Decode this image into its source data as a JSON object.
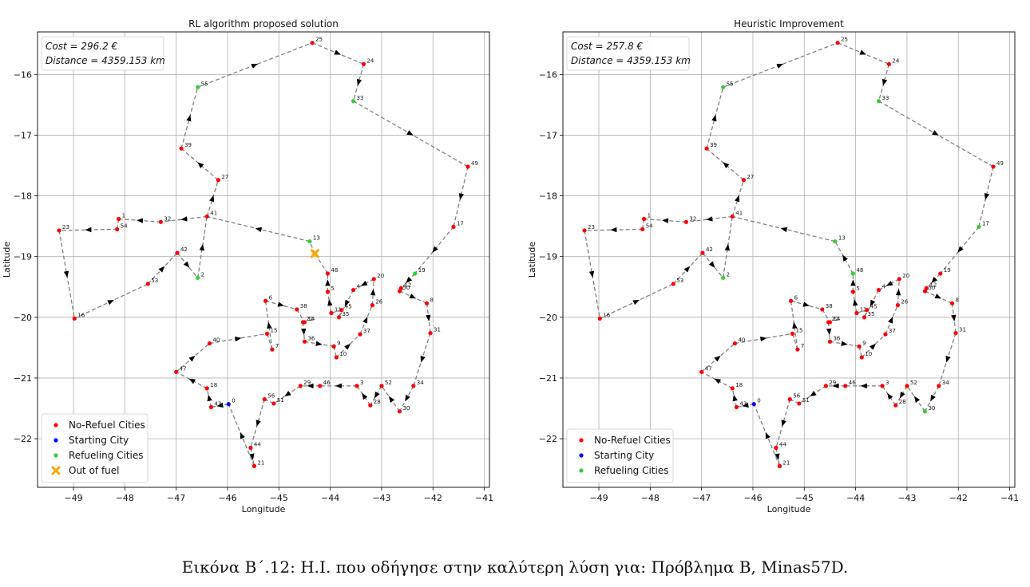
{
  "chart_data": [
    {
      "type": "scatter",
      "title": "RL algorithm proposed solution",
      "xlabel": "Longitude",
      "ylabel": "Latitude",
      "xlim": [
        -49.7,
        -40.9
      ],
      "ylim": [
        -22.8,
        -15.3
      ],
      "xticks": [
        -49,
        -48,
        -47,
        -46,
        -45,
        -44,
        -43,
        -42,
        -41
      ],
      "yticks": [
        -16,
        -17,
        -18,
        -19,
        -20,
        -21,
        -22
      ],
      "grid": true,
      "info_lines": [
        "Cost = 296.2 €",
        "Distance = 4359.153 km"
      ],
      "legend_position": "lower-left",
      "legend": [
        {
          "label": "No-Refuel Cities",
          "color": "#ff0000",
          "marker": "dot"
        },
        {
          "label": "Starting City",
          "color": "#0000ff",
          "marker": "dot"
        },
        {
          "label": "Refueling Cities",
          "color": "#33cc33",
          "marker": "dot"
        },
        {
          "label": "Out of fuel",
          "color": "#ffa500",
          "marker": "x"
        }
      ],
      "refuel_cities": [
        "55",
        "33",
        "13",
        "2",
        "19"
      ],
      "out_of_fuel": {
        "x": -44.3,
        "y": -18.95
      },
      "route": [
        "0",
        "43",
        "18",
        "47",
        "40",
        "15",
        "7",
        "6",
        "38",
        "14",
        "22",
        "36",
        "9",
        "10",
        "37",
        "26",
        "20",
        "4",
        "35",
        "45",
        "11",
        "5",
        "48",
        "13",
        "41",
        "27",
        "39",
        "55",
        "25",
        "24",
        "33",
        "49",
        "17",
        "19",
        "12",
        "50",
        "8",
        "31",
        "34",
        "30",
        "52",
        "28",
        "3",
        "46",
        "29",
        "51",
        "56",
        "44",
        "21",
        "0"
      ],
      "route_complete": false,
      "break_after": "48",
      "extra_path": [
        "41",
        "32",
        "1",
        "54",
        "23",
        "16",
        "53",
        "42",
        "2",
        "41"
      ]
    },
    {
      "type": "scatter",
      "title": "Heuristic Improvement",
      "xlabel": "Longitude",
      "ylabel": "Latitude",
      "xlim": [
        -49.7,
        -40.9
      ],
      "ylim": [
        -22.8,
        -15.3
      ],
      "xticks": [
        -49,
        -48,
        -47,
        -46,
        -45,
        -44,
        -43,
        -42,
        -41
      ],
      "yticks": [
        -16,
        -17,
        -18,
        -19,
        -20,
        -21,
        -22
      ],
      "grid": true,
      "info_lines": [
        "Cost = 257.8 €",
        "Distance = 4359.153 km"
      ],
      "legend_position": "lower-left",
      "legend": [
        {
          "label": "No-Refuel Cities",
          "color": "#ff0000",
          "marker": "dot"
        },
        {
          "label": "Starting City",
          "color": "#0000ff",
          "marker": "dot"
        },
        {
          "label": "Refueling Cities",
          "color": "#33cc33",
          "marker": "dot"
        }
      ],
      "refuel_cities": [
        "55",
        "33",
        "13",
        "2",
        "48",
        "17",
        "30"
      ],
      "route": [
        "0",
        "43",
        "18",
        "47",
        "40",
        "15",
        "7",
        "6",
        "38",
        "14",
        "22",
        "36",
        "9",
        "10",
        "37",
        "26",
        "20",
        "4",
        "35",
        "45",
        "11",
        "5",
        "48",
        "13",
        "41",
        "27",
        "39",
        "55",
        "25",
        "24",
        "33",
        "49",
        "17",
        "19",
        "12",
        "50",
        "8",
        "31",
        "34",
        "30",
        "52",
        "28",
        "3",
        "46",
        "29",
        "51",
        "56",
        "44",
        "21",
        "0"
      ],
      "route_complete": true,
      "extra_path": [
        "41",
        "32",
        "1",
        "54",
        "23",
        "16",
        "53",
        "42",
        "2",
        "41"
      ]
    }
  ],
  "cities": [
    {
      "id": "0",
      "x": -45.98,
      "y": -21.43
    },
    {
      "id": "1",
      "x": -48.12,
      "y": -18.38
    },
    {
      "id": "2",
      "x": -46.58,
      "y": -19.35
    },
    {
      "id": "3",
      "x": -43.48,
      "y": -21.13
    },
    {
      "id": "4",
      "x": -43.55,
      "y": -19.55
    },
    {
      "id": "5",
      "x": -44.05,
      "y": -19.58
    },
    {
      "id": "6",
      "x": -45.26,
      "y": -19.73
    },
    {
      "id": "7",
      "x": -45.13,
      "y": -20.53
    },
    {
      "id": "8",
      "x": -42.12,
      "y": -19.77
    },
    {
      "id": "9",
      "x": -43.93,
      "y": -20.48
    },
    {
      "id": "10",
      "x": -43.88,
      "y": -20.66
    },
    {
      "id": "11",
      "x": -43.98,
      "y": -19.93
    },
    {
      "id": "12",
      "x": -42.62,
      "y": -19.52
    },
    {
      "id": "13",
      "x": -44.4,
      "y": -18.75
    },
    {
      "id": "14",
      "x": -44.5,
      "y": -20.08
    },
    {
      "id": "15",
      "x": -45.23,
      "y": -20.27
    },
    {
      "id": "16",
      "x": -48.98,
      "y": -20.02
    },
    {
      "id": "17",
      "x": -41.6,
      "y": -18.51
    },
    {
      "id": "18",
      "x": -46.4,
      "y": -21.17
    },
    {
      "id": "19",
      "x": -42.35,
      "y": -19.28
    },
    {
      "id": "20",
      "x": -43.15,
      "y": -19.37
    },
    {
      "id": "21",
      "x": -45.48,
      "y": -22.45
    },
    {
      "id": "22",
      "x": -44.53,
      "y": -20.08
    },
    {
      "id": "23",
      "x": -49.28,
      "y": -18.57
    },
    {
      "id": "24",
      "x": -43.35,
      "y": -15.83
    },
    {
      "id": "25",
      "x": -44.35,
      "y": -15.48
    },
    {
      "id": "26",
      "x": -43.18,
      "y": -19.8
    },
    {
      "id": "27",
      "x": -46.18,
      "y": -17.74
    },
    {
      "id": "28",
      "x": -43.22,
      "y": -21.45
    },
    {
      "id": "29",
      "x": -44.58,
      "y": -21.13
    },
    {
      "id": "30",
      "x": -42.65,
      "y": -21.55
    },
    {
      "id": "31",
      "x": -42.05,
      "y": -20.26
    },
    {
      "id": "32",
      "x": -47.3,
      "y": -18.43
    },
    {
      "id": "33",
      "x": -43.55,
      "y": -16.44
    },
    {
      "id": "34",
      "x": -42.38,
      "y": -21.13
    },
    {
      "id": "35",
      "x": -43.83,
      "y": -20.0
    },
    {
      "id": "36",
      "x": -44.5,
      "y": -20.4
    },
    {
      "id": "37",
      "x": -43.42,
      "y": -20.28
    },
    {
      "id": "38",
      "x": -44.65,
      "y": -19.87
    },
    {
      "id": "39",
      "x": -46.9,
      "y": -17.22
    },
    {
      "id": "40",
      "x": -46.35,
      "y": -20.43
    },
    {
      "id": "41",
      "x": -46.4,
      "y": -18.34
    },
    {
      "id": "42",
      "x": -46.98,
      "y": -18.94
    },
    {
      "id": "43",
      "x": -46.32,
      "y": -21.48
    },
    {
      "id": "44",
      "x": -45.55,
      "y": -22.15
    },
    {
      "id": "45",
      "x": -43.78,
      "y": -19.88
    },
    {
      "id": "46",
      "x": -44.2,
      "y": -21.13
    },
    {
      "id": "47",
      "x": -47.0,
      "y": -20.9
    },
    {
      "id": "48",
      "x": -44.05,
      "y": -19.28
    },
    {
      "id": "49",
      "x": -41.32,
      "y": -17.52
    },
    {
      "id": "50",
      "x": -42.65,
      "y": -19.57
    },
    {
      "id": "51",
      "x": -45.1,
      "y": -21.42
    },
    {
      "id": "52",
      "x": -43.0,
      "y": -21.13
    },
    {
      "id": "53",
      "x": -47.55,
      "y": -19.45
    },
    {
      "id": "54",
      "x": -48.15,
      "y": -18.55
    },
    {
      "id": "55",
      "x": -46.58,
      "y": -16.21
    },
    {
      "id": "56",
      "x": -45.28,
      "y": -21.35
    }
  ],
  "starting_city": "0",
  "caption": "Εικόνα Β΄.12: Η.Ι. που οδήγησε στην καλύτερη λύση για: Πρόβλημα Β, Minas57D."
}
